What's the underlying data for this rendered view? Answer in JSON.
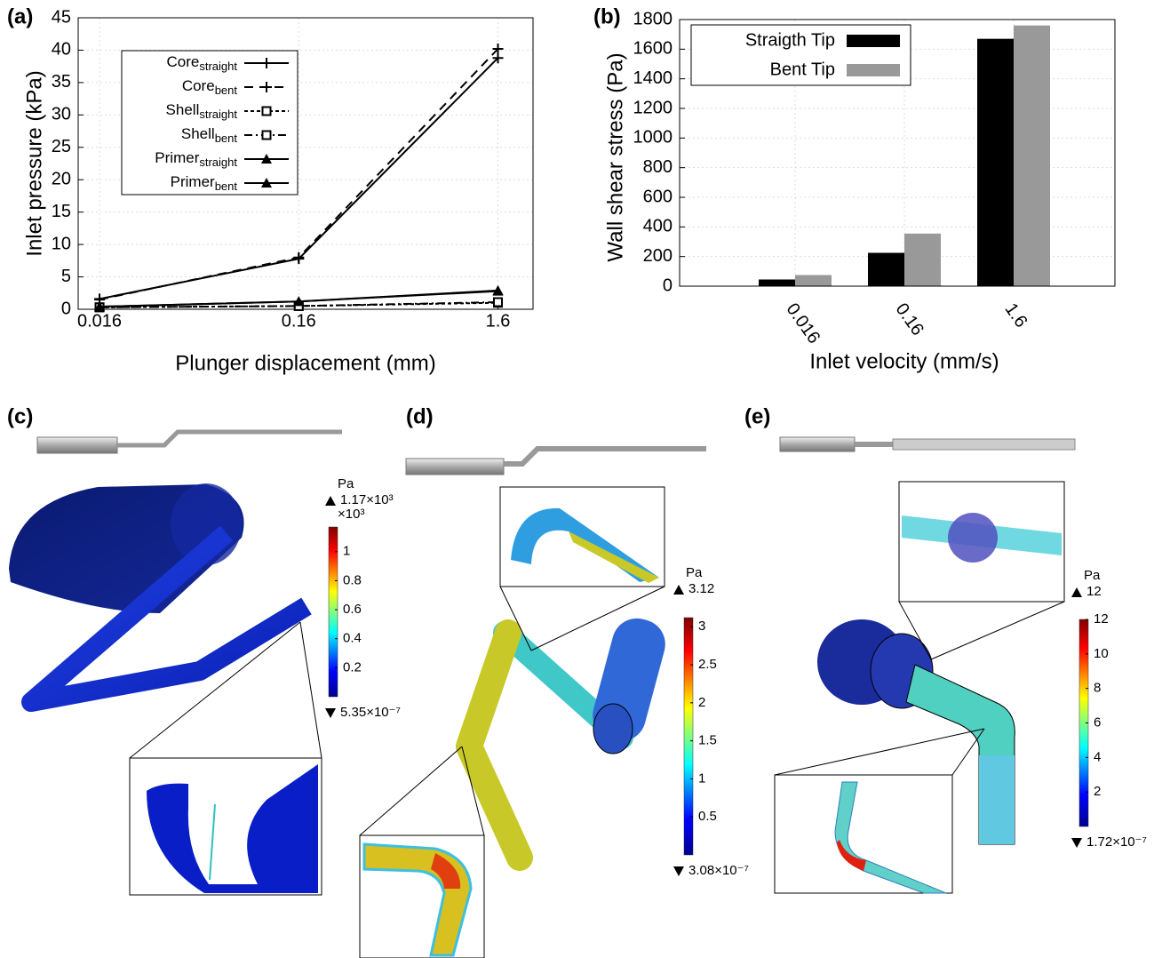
{
  "chart_data": [
    {
      "type": "line",
      "panel_label": "(a)",
      "ylabel": "Inlet pressure (kPa)",
      "xlabel": "Plunger displacement (mm)",
      "xscale": "log",
      "x": [
        0.016,
        0.16,
        1.6
      ],
      "xlim": [
        0.0125,
        2.4
      ],
      "xticks": [
        0.016,
        0.16,
        1.6
      ],
      "ylim": [
        0,
        45
      ],
      "yticks": [
        0,
        5,
        10,
        15,
        20,
        25,
        30,
        35,
        40,
        45
      ],
      "grid": true,
      "legend": "upper left",
      "series": [
        {
          "name": "Core",
          "subscript": "straight",
          "color": "#000000",
          "marker": "plus",
          "dash": "none",
          "values": [
            1.6,
            7.8,
            38.8
          ]
        },
        {
          "name": "Core",
          "subscript": "bent",
          "color": "#000000",
          "marker": "plus",
          "dash": "10 7",
          "values": [
            1.5,
            8.0,
            40.2
          ]
        },
        {
          "name": "Shell",
          "subscript": "straight",
          "color": "#000000",
          "marker": "square",
          "dash": "4 3",
          "values": [
            0.3,
            0.5,
            1.0
          ]
        },
        {
          "name": "Shell",
          "subscript": "bent",
          "color": "#000000",
          "marker": "square",
          "dash": "9 4 2 4",
          "values": [
            0.3,
            0.5,
            1.1
          ]
        },
        {
          "name": "Primer",
          "subscript": "straight",
          "color": "#000000",
          "marker": "triangle",
          "dash": "none",
          "values": [
            0.4,
            1.2,
            2.8
          ]
        },
        {
          "name": "Primer",
          "subscript": "bent",
          "color": "#000000",
          "marker": "triangle",
          "dash": "none",
          "values": [
            0.4,
            1.2,
            2.9
          ]
        }
      ]
    },
    {
      "type": "bar",
      "panel_label": "(b)",
      "ylabel": "Wall shear stress (Pa)",
      "xlabel": "Inlet velocity (mm/s)",
      "categories": [
        "0.016",
        "0.16",
        "1.6"
      ],
      "ylim": [
        0,
        1800
      ],
      "yticks": [
        0,
        200,
        400,
        600,
        800,
        1000,
        1200,
        1400,
        1600,
        1800
      ],
      "grid": true,
      "legend": "upper left",
      "series": [
        {
          "name": "Straigth Tip",
          "color": "#000000",
          "values": [
            45,
            225,
            1670
          ]
        },
        {
          "name": "Bent Tip",
          "color": "#999999",
          "values": [
            75,
            355,
            1760
          ]
        }
      ]
    }
  ],
  "panels": [
    {
      "label": "(c)",
      "unit": "Pa",
      "max_label": "1.17×10³",
      "multiplier": "×10³",
      "min_label": "5.35×10⁻⁷",
      "clim": [
        0,
        1.17
      ],
      "ticks": [
        0.2,
        0.4,
        0.6,
        0.8,
        1
      ]
    },
    {
      "label": "(d)",
      "unit": "Pa",
      "max_label": "3.12",
      "min_label": "3.08×10⁻⁷",
      "clim": [
        0,
        3.12
      ],
      "ticks": [
        0.5,
        1,
        1.5,
        2,
        2.5,
        3
      ]
    },
    {
      "label": "(e)",
      "unit": "Pa",
      "max_label": "12",
      "min_label": "1.72×10⁻⁷",
      "clim": [
        0,
        12
      ],
      "ticks": [
        2,
        4,
        6,
        8,
        10,
        12
      ]
    }
  ]
}
